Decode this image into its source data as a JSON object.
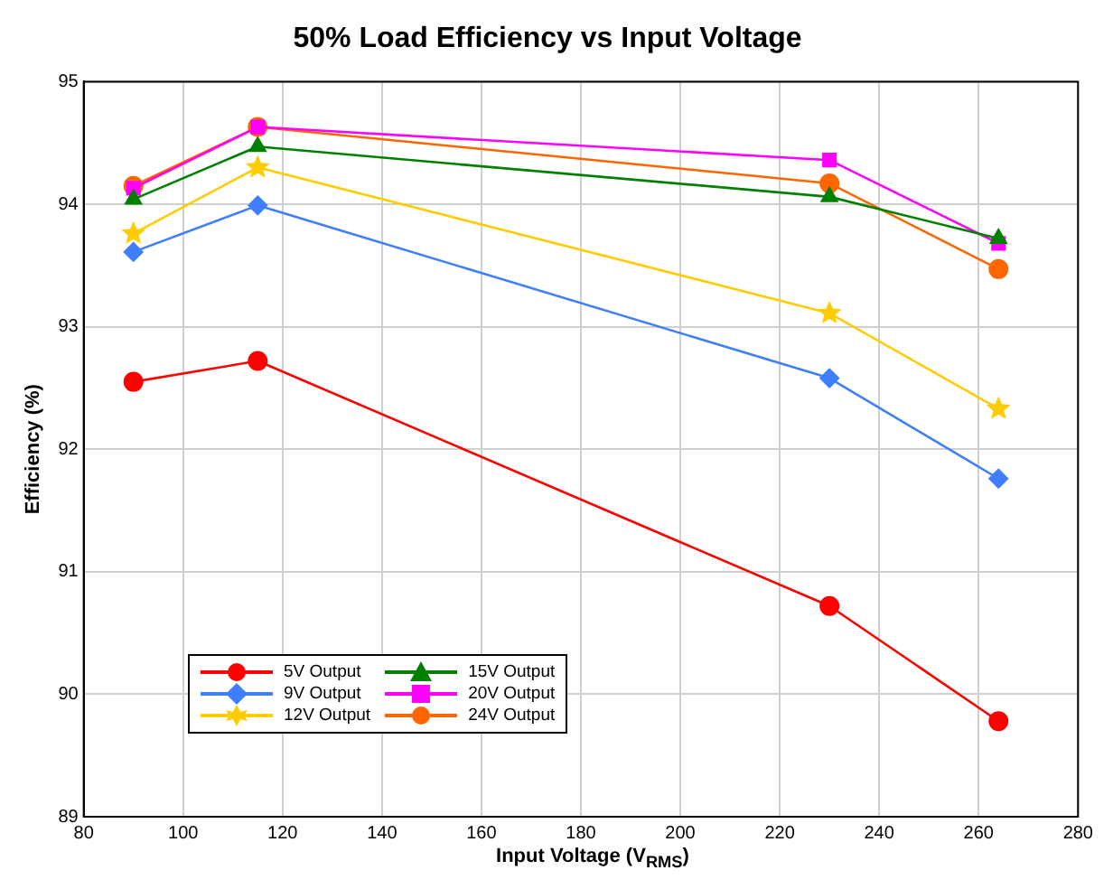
{
  "chart_data": {
    "type": "line",
    "title": "50% Load Efficiency vs Input Voltage",
    "xlabel": "Input Voltage (V$_{RMS}$)",
    "ylabel": "Efficiency (%)",
    "x": [
      90,
      115,
      230,
      264
    ],
    "series": [
      {
        "name": "5V Output",
        "color": "#ff0000",
        "marker": "circle",
        "values": [
          92.55,
          92.72,
          90.72,
          89.78
        ]
      },
      {
        "name": "9V Output",
        "color": "#3f7fff",
        "marker": "diamond",
        "values": [
          93.61,
          93.99,
          92.58,
          91.76
        ]
      },
      {
        "name": "12V Output",
        "color": "#ffcc00",
        "marker": "star",
        "values": [
          93.76,
          94.3,
          93.11,
          92.33
        ]
      },
      {
        "name": "15V Output",
        "color": "#008000",
        "marker": "triangle",
        "values": [
          94.04,
          94.47,
          94.06,
          93.72
        ]
      },
      {
        "name": "20V Output",
        "color": "#ff00ff",
        "marker": "square",
        "values": [
          94.13,
          94.63,
          94.36,
          93.68
        ]
      },
      {
        "name": "24V Output",
        "color": "#ff6600",
        "marker": "circle",
        "values": [
          94.15,
          94.63,
          94.17,
          93.47
        ]
      }
    ],
    "xlim": [
      80,
      280
    ],
    "xticks": [
      80,
      100,
      120,
      140,
      160,
      180,
      200,
      220,
      240,
      260,
      280
    ],
    "ylim": [
      89,
      95
    ],
    "yticks": [
      89,
      90,
      91,
      92,
      93,
      94,
      95
    ],
    "grid": true,
    "legend": "bottom left",
    "line_style": "solid"
  }
}
